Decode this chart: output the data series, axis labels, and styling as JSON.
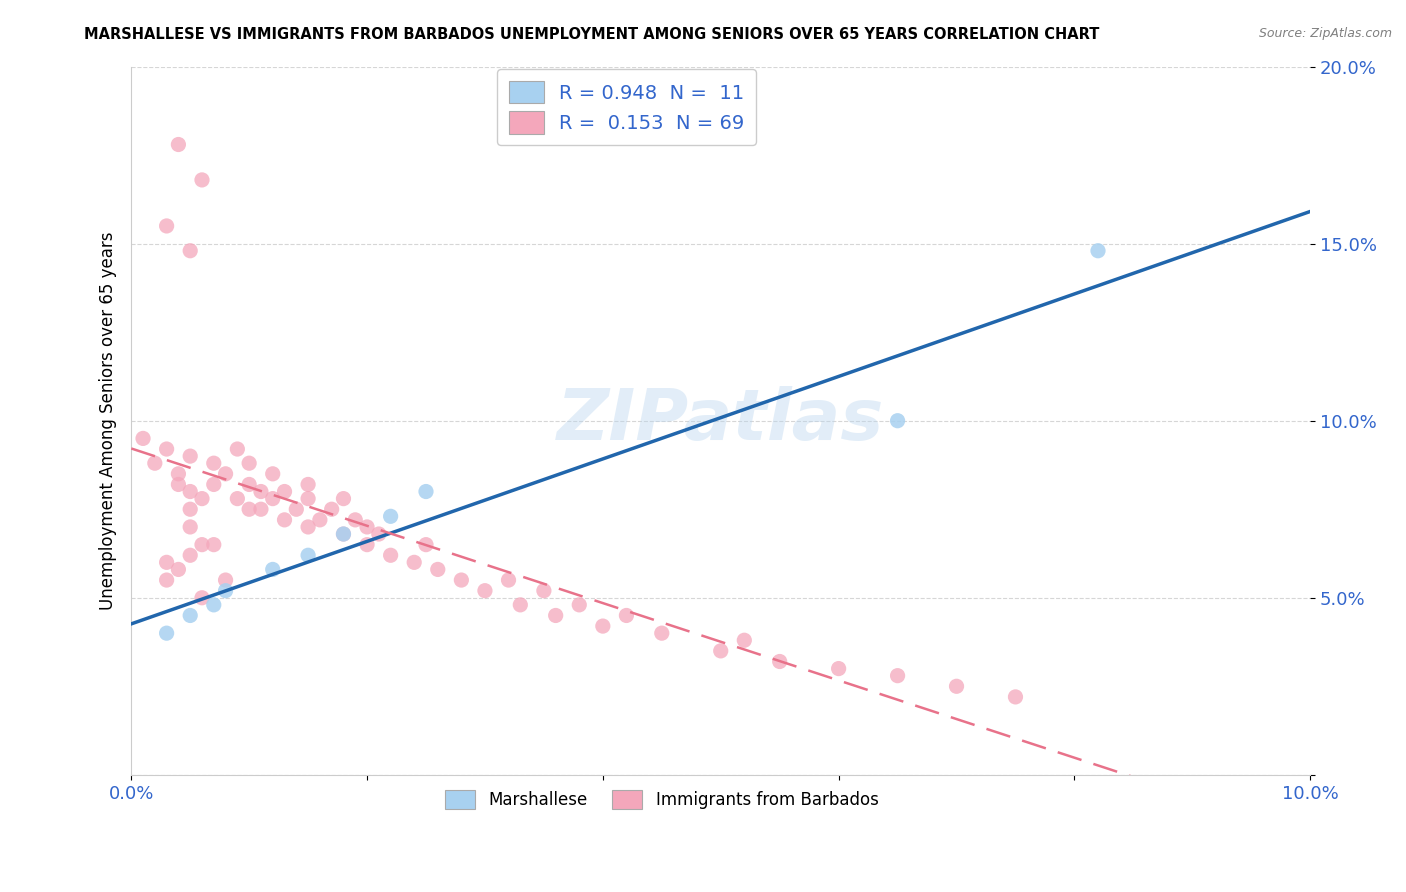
{
  "title": "MARSHALLESE VS IMMIGRANTS FROM BARBADOS UNEMPLOYMENT AMONG SENIORS OVER 65 YEARS CORRELATION CHART",
  "source": "Source: ZipAtlas.com",
  "ylabel": "Unemployment Among Seniors over 65 years",
  "x_min": 0.0,
  "x_max": 0.1,
  "y_min": 0.0,
  "y_max": 0.2,
  "x_ticks": [
    0.0,
    0.02,
    0.04,
    0.06,
    0.08,
    0.1
  ],
  "x_tick_labels": [
    "0.0%",
    "",
    "",
    "",
    "",
    "10.0%"
  ],
  "y_ticks": [
    0.0,
    0.05,
    0.1,
    0.15,
    0.2
  ],
  "y_tick_labels": [
    "",
    "5.0%",
    "10.0%",
    "15.0%",
    "20.0%"
  ],
  "legend_labels": [
    "Marshallese",
    "Immigrants from Barbados"
  ],
  "blue_R": "0.948",
  "blue_N": "11",
  "pink_R": "0.153",
  "pink_N": "69",
  "blue_color": "#a8d1f0",
  "pink_color": "#f4a7bb",
  "blue_line_color": "#2166ac",
  "pink_line_color": "#e8728a",
  "tick_label_color": "#3366cc",
  "watermark": "ZIPatlas",
  "blue_points_x": [
    0.003,
    0.005,
    0.007,
    0.008,
    0.012,
    0.015,
    0.018,
    0.022,
    0.025,
    0.065,
    0.082
  ],
  "blue_points_y": [
    0.04,
    0.045,
    0.048,
    0.052,
    0.058,
    0.062,
    0.068,
    0.073,
    0.08,
    0.1,
    0.148
  ],
  "pink_points_x": [
    0.001,
    0.002,
    0.003,
    0.004,
    0.004,
    0.005,
    0.005,
    0.005,
    0.006,
    0.007,
    0.007,
    0.008,
    0.009,
    0.009,
    0.01,
    0.01,
    0.01,
    0.011,
    0.011,
    0.012,
    0.012,
    0.013,
    0.013,
    0.014,
    0.015,
    0.015,
    0.015,
    0.016,
    0.017,
    0.018,
    0.018,
    0.019,
    0.02,
    0.02,
    0.021,
    0.022,
    0.024,
    0.025,
    0.026,
    0.028,
    0.03,
    0.032,
    0.033,
    0.035,
    0.036,
    0.038,
    0.04,
    0.042,
    0.045,
    0.05,
    0.052,
    0.055,
    0.06,
    0.065,
    0.07,
    0.075,
    0.003,
    0.004,
    0.005,
    0.006,
    0.003,
    0.003,
    0.004,
    0.005,
    0.006,
    0.007,
    0.008,
    0.005,
    0.006
  ],
  "pink_points_y": [
    0.095,
    0.088,
    0.092,
    0.085,
    0.082,
    0.075,
    0.08,
    0.09,
    0.078,
    0.088,
    0.082,
    0.085,
    0.078,
    0.092,
    0.075,
    0.082,
    0.088,
    0.075,
    0.08,
    0.078,
    0.085,
    0.072,
    0.08,
    0.075,
    0.07,
    0.078,
    0.082,
    0.072,
    0.075,
    0.068,
    0.078,
    0.072,
    0.065,
    0.07,
    0.068,
    0.062,
    0.06,
    0.065,
    0.058,
    0.055,
    0.052,
    0.055,
    0.048,
    0.052,
    0.045,
    0.048,
    0.042,
    0.045,
    0.04,
    0.035,
    0.038,
    0.032,
    0.03,
    0.028,
    0.025,
    0.022,
    0.155,
    0.178,
    0.148,
    0.168,
    0.06,
    0.055,
    0.058,
    0.062,
    0.05,
    0.065,
    0.055,
    0.07,
    0.065
  ]
}
